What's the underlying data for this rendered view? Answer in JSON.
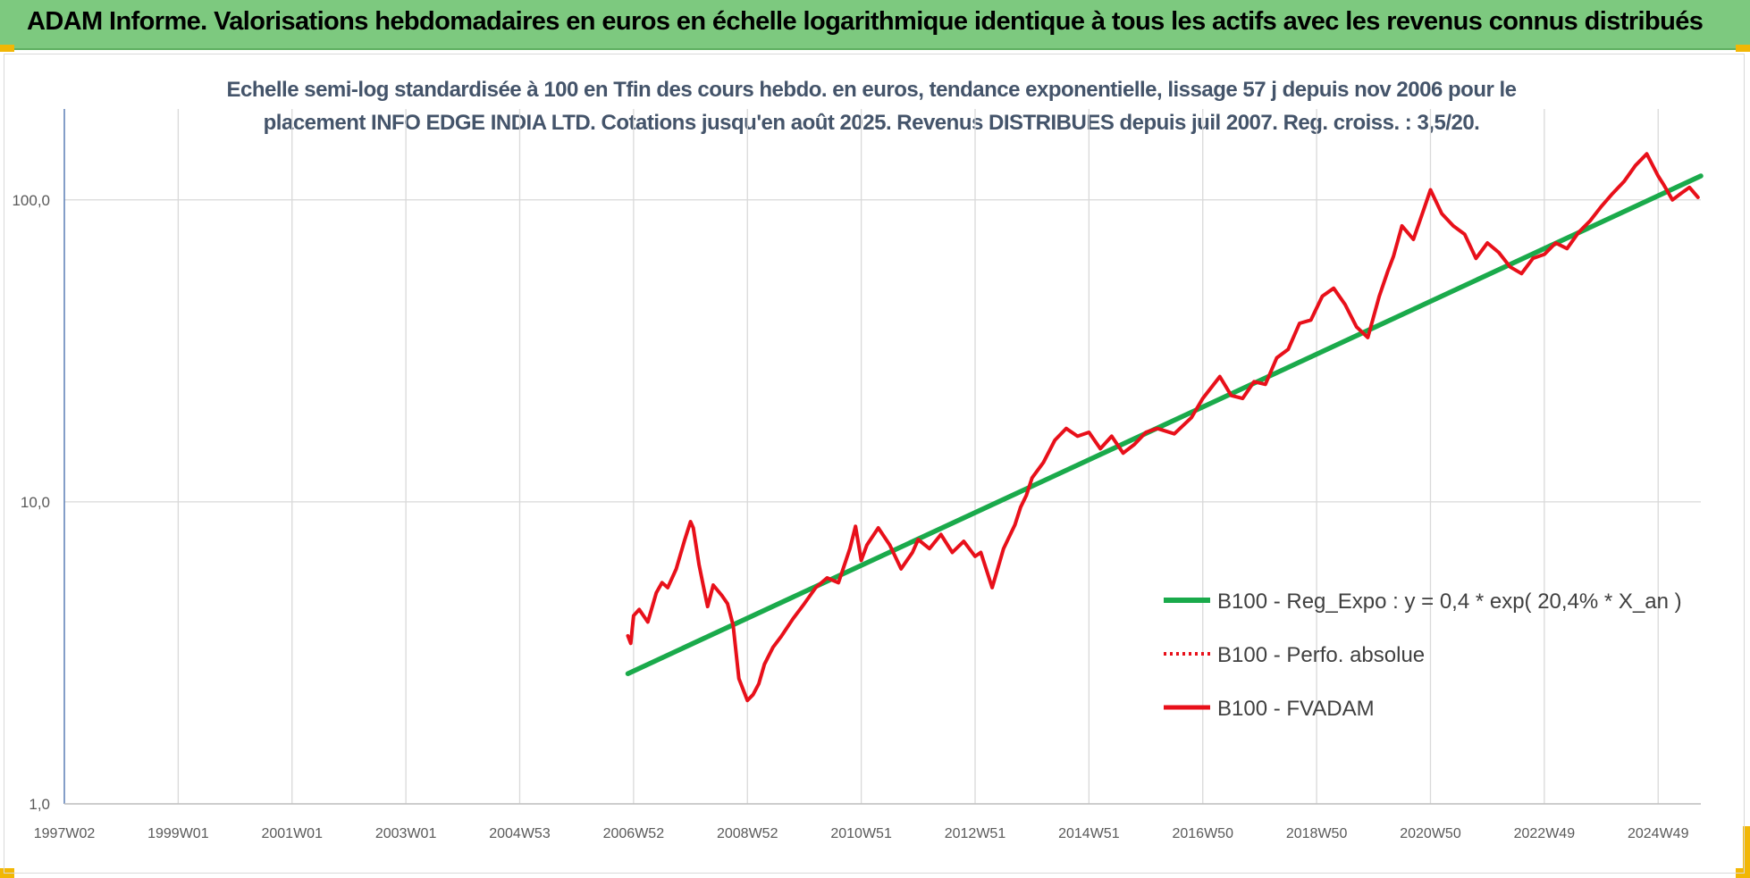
{
  "header": {
    "title": "ADAM Informe. Valorisations hebdomadaires en euros en échelle logarithmique identique à tous les actifs avec les revenus connus distribués"
  },
  "chart_data": {
    "type": "line",
    "title_line1": "Echelle semi-log standardisée à 100 en Tfin des cours hebdo. en euros, tendance exponentielle, lissage 57 j depuis nov 2006 pour le",
    "title_line2": "placement INFO EDGE INDIA LTD. Cotations jusqu'en août 2025. Revenus DISTRIBUES depuis juil 2007. Reg. croiss. : 3,5/20.",
    "y_scale": "log",
    "ylim": [
      1,
      200
    ],
    "xlim": [
      1997.0,
      2025.75
    ],
    "y_ticks": [
      {
        "value": 1,
        "label": "1,0"
      },
      {
        "value": 10,
        "label": "10,0"
      },
      {
        "value": 100,
        "label": "100,0"
      }
    ],
    "x_ticks": [
      {
        "value": 1997.0,
        "label": "1997W02"
      },
      {
        "value": 1999.0,
        "label": "1999W01"
      },
      {
        "value": 2001.0,
        "label": "2001W01"
      },
      {
        "value": 2003.0,
        "label": "2003W01"
      },
      {
        "value": 2005.0,
        "label": "2004W53"
      },
      {
        "value": 2007.0,
        "label": "2006W52"
      },
      {
        "value": 2009.0,
        "label": "2008W52"
      },
      {
        "value": 2011.0,
        "label": "2010W51"
      },
      {
        "value": 2013.0,
        "label": "2012W51"
      },
      {
        "value": 2015.0,
        "label": "2014W51"
      },
      {
        "value": 2017.0,
        "label": "2016W50"
      },
      {
        "value": 2019.0,
        "label": "2018W50"
      },
      {
        "value": 2021.0,
        "label": "2020W50"
      },
      {
        "value": 2023.0,
        "label": "2022W49"
      },
      {
        "value": 2025.0,
        "label": "2024W49"
      }
    ],
    "grid": true,
    "legend_position": "right",
    "series": [
      {
        "name": "B100 - Reg_Expo : y = 0,4 * exp( 20,4% *  X_an )",
        "color": "#1aaa4b",
        "style": "solid",
        "x": [
          2006.9,
          2025.75
        ],
        "y": [
          2.7,
          120
        ]
      },
      {
        "name": "B100 - Perfo. absolue",
        "color": "#e8101a",
        "style": "dotted",
        "x": [],
        "y": []
      },
      {
        "name": "B100 - FVADAM",
        "color": "#e8101a",
        "style": "solid",
        "x": [
          2006.9,
          2006.95,
          2007.0,
          2007.1,
          2007.25,
          2007.4,
          2007.5,
          2007.6,
          2007.75,
          2007.9,
          2008.0,
          2008.05,
          2008.15,
          2008.25,
          2008.3,
          2008.4,
          2008.55,
          2008.65,
          2008.75,
          2008.85,
          2009.0,
          2009.1,
          2009.2,
          2009.3,
          2009.45,
          2009.6,
          2009.8,
          2010.0,
          2010.2,
          2010.4,
          2010.6,
          2010.8,
          2010.9,
          2011.0,
          2011.1,
          2011.3,
          2011.5,
          2011.7,
          2011.9,
          2012.0,
          2012.2,
          2012.4,
          2012.6,
          2012.8,
          2013.0,
          2013.1,
          2013.3,
          2013.5,
          2013.7,
          2013.8,
          2013.9,
          2014.0,
          2014.2,
          2014.4,
          2014.6,
          2014.8,
          2015.0,
          2015.2,
          2015.4,
          2015.6,
          2015.8,
          2016.0,
          2016.2,
          2016.5,
          2016.8,
          2017.0,
          2017.3,
          2017.5,
          2017.7,
          2017.9,
          2018.1,
          2018.3,
          2018.5,
          2018.7,
          2018.9,
          2019.1,
          2019.3,
          2019.5,
          2019.7,
          2019.9,
          2020.1,
          2020.25,
          2020.35,
          2020.5,
          2020.7,
          2020.9,
          2021.0,
          2021.2,
          2021.4,
          2021.6,
          2021.8,
          2022.0,
          2022.2,
          2022.4,
          2022.6,
          2022.8,
          2023.0,
          2023.2,
          2023.4,
          2023.6,
          2023.8,
          2024.0,
          2024.2,
          2024.4,
          2024.6,
          2024.8,
          2025.0,
          2025.1,
          2025.25,
          2025.4,
          2025.55,
          2025.7
        ],
        "y": [
          3.6,
          3.4,
          4.2,
          4.4,
          4.0,
          5.0,
          5.4,
          5.2,
          6.0,
          7.5,
          8.6,
          8.2,
          6.2,
          5.0,
          4.5,
          5.3,
          4.9,
          4.6,
          3.9,
          2.6,
          2.2,
          2.3,
          2.5,
          2.9,
          3.3,
          3.6,
          4.1,
          4.6,
          5.2,
          5.6,
          5.4,
          7.0,
          8.3,
          6.4,
          7.2,
          8.2,
          7.2,
          6.0,
          6.8,
          7.5,
          7.0,
          7.8,
          6.8,
          7.4,
          6.6,
          6.8,
          5.2,
          7.0,
          8.4,
          9.6,
          10.5,
          12.0,
          13.5,
          16.0,
          17.5,
          16.5,
          17.0,
          15.0,
          16.5,
          14.5,
          15.5,
          17.0,
          17.5,
          16.8,
          19.0,
          22.0,
          26.0,
          22.5,
          22.0,
          25.0,
          24.5,
          30.0,
          32.0,
          39.0,
          40.0,
          48.0,
          51.0,
          45.0,
          38.0,
          35.0,
          48.0,
          58.0,
          65.0,
          82.0,
          74.0,
          95.0,
          108.0,
          90.0,
          82.0,
          77.0,
          64.0,
          72.0,
          67.0,
          60.0,
          57.0,
          64.0,
          66.0,
          72.0,
          69.0,
          78.0,
          85.0,
          95.0,
          105.0,
          115.0,
          130.0,
          142.0,
          120.0,
          112.0,
          100.0,
          105.0,
          110.0,
          102.0
        ]
      }
    ]
  }
}
